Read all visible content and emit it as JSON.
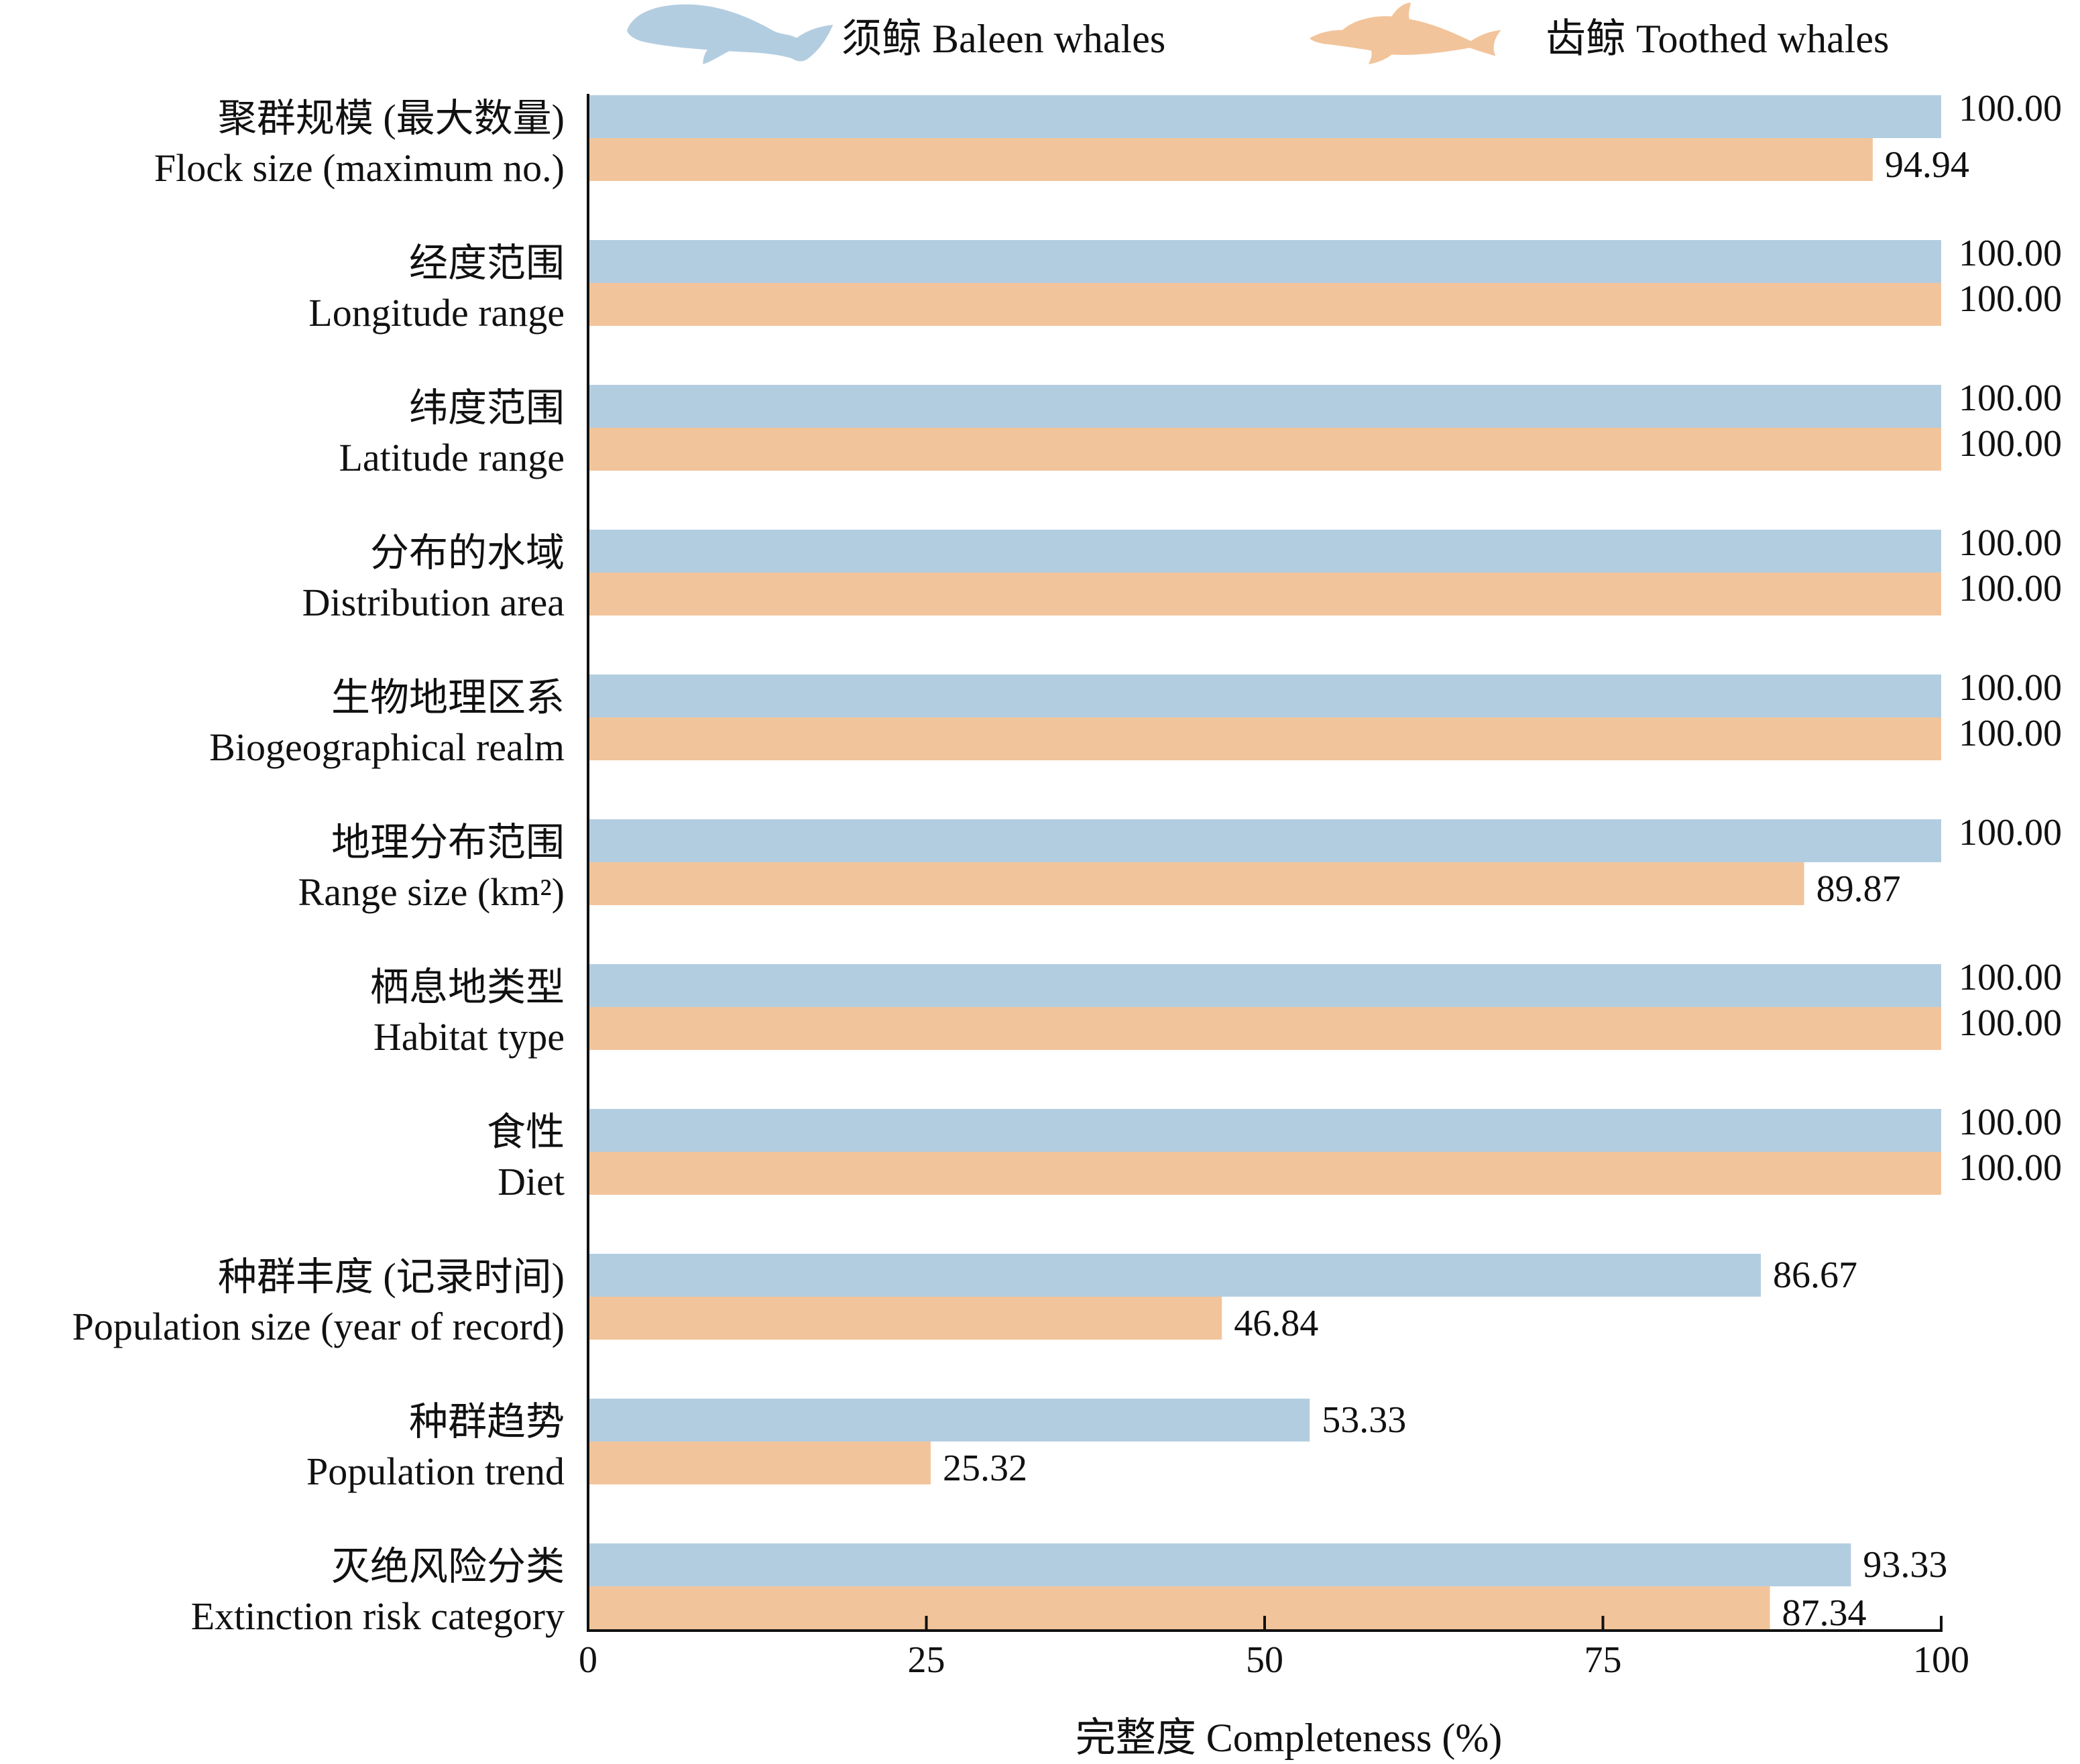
{
  "chart_data": {
    "type": "bar",
    "orientation": "horizontal",
    "title": "",
    "xlabel": "完整度 Completeness (%)",
    "ylabel": "",
    "xlim": [
      0,
      100
    ],
    "xticks": [
      0,
      25,
      50,
      75,
      100
    ],
    "grid": false,
    "legend_position": "top",
    "categories": [
      {
        "zh": "聚群规模 (最大数量)",
        "en": "Flock size (maximum no.)"
      },
      {
        "zh": "经度范围",
        "en": "Longitude range"
      },
      {
        "zh": "纬度范围",
        "en": "Latitude range"
      },
      {
        "zh": "分布的水域",
        "en": "Distribution area"
      },
      {
        "zh": "生物地理区系",
        "en": "Biogeographical realm"
      },
      {
        "zh": "地理分布范围",
        "en": "Range size (km²)"
      },
      {
        "zh": "栖息地类型",
        "en": "Habitat type"
      },
      {
        "zh": "食性",
        "en": "Diet"
      },
      {
        "zh": "种群丰度 (记录时间)",
        "en": "Population size (year of record)"
      },
      {
        "zh": "种群趋势",
        "en": "Population trend"
      },
      {
        "zh": "灭绝风险分类",
        "en": "Extinction risk category"
      }
    ],
    "series": [
      {
        "name": "须鲸 Baleen whales",
        "color": "#b3cde0",
        "icon": "baleen-whale-silhouette",
        "values": [
          100.0,
          100.0,
          100.0,
          100.0,
          100.0,
          100.0,
          100.0,
          100.0,
          86.67,
          53.33,
          93.33
        ],
        "labels": [
          "100.00",
          "100.00",
          "100.00",
          "100.00",
          "100.00",
          "100.00",
          "100.00",
          "100.00",
          "86.67",
          "53.33",
          "93.33"
        ]
      },
      {
        "name": "齿鲸 Toothed whales",
        "color": "#f2c49b",
        "icon": "toothed-whale-silhouette",
        "values": [
          94.94,
          100.0,
          100.0,
          100.0,
          100.0,
          89.87,
          100.0,
          100.0,
          46.84,
          25.32,
          87.34
        ],
        "labels": [
          "94.94",
          "100.00",
          "100.00",
          "100.00",
          "100.00",
          "89.87",
          "100.00",
          "100.00",
          "46.84",
          "25.32",
          "87.34"
        ]
      }
    ]
  }
}
